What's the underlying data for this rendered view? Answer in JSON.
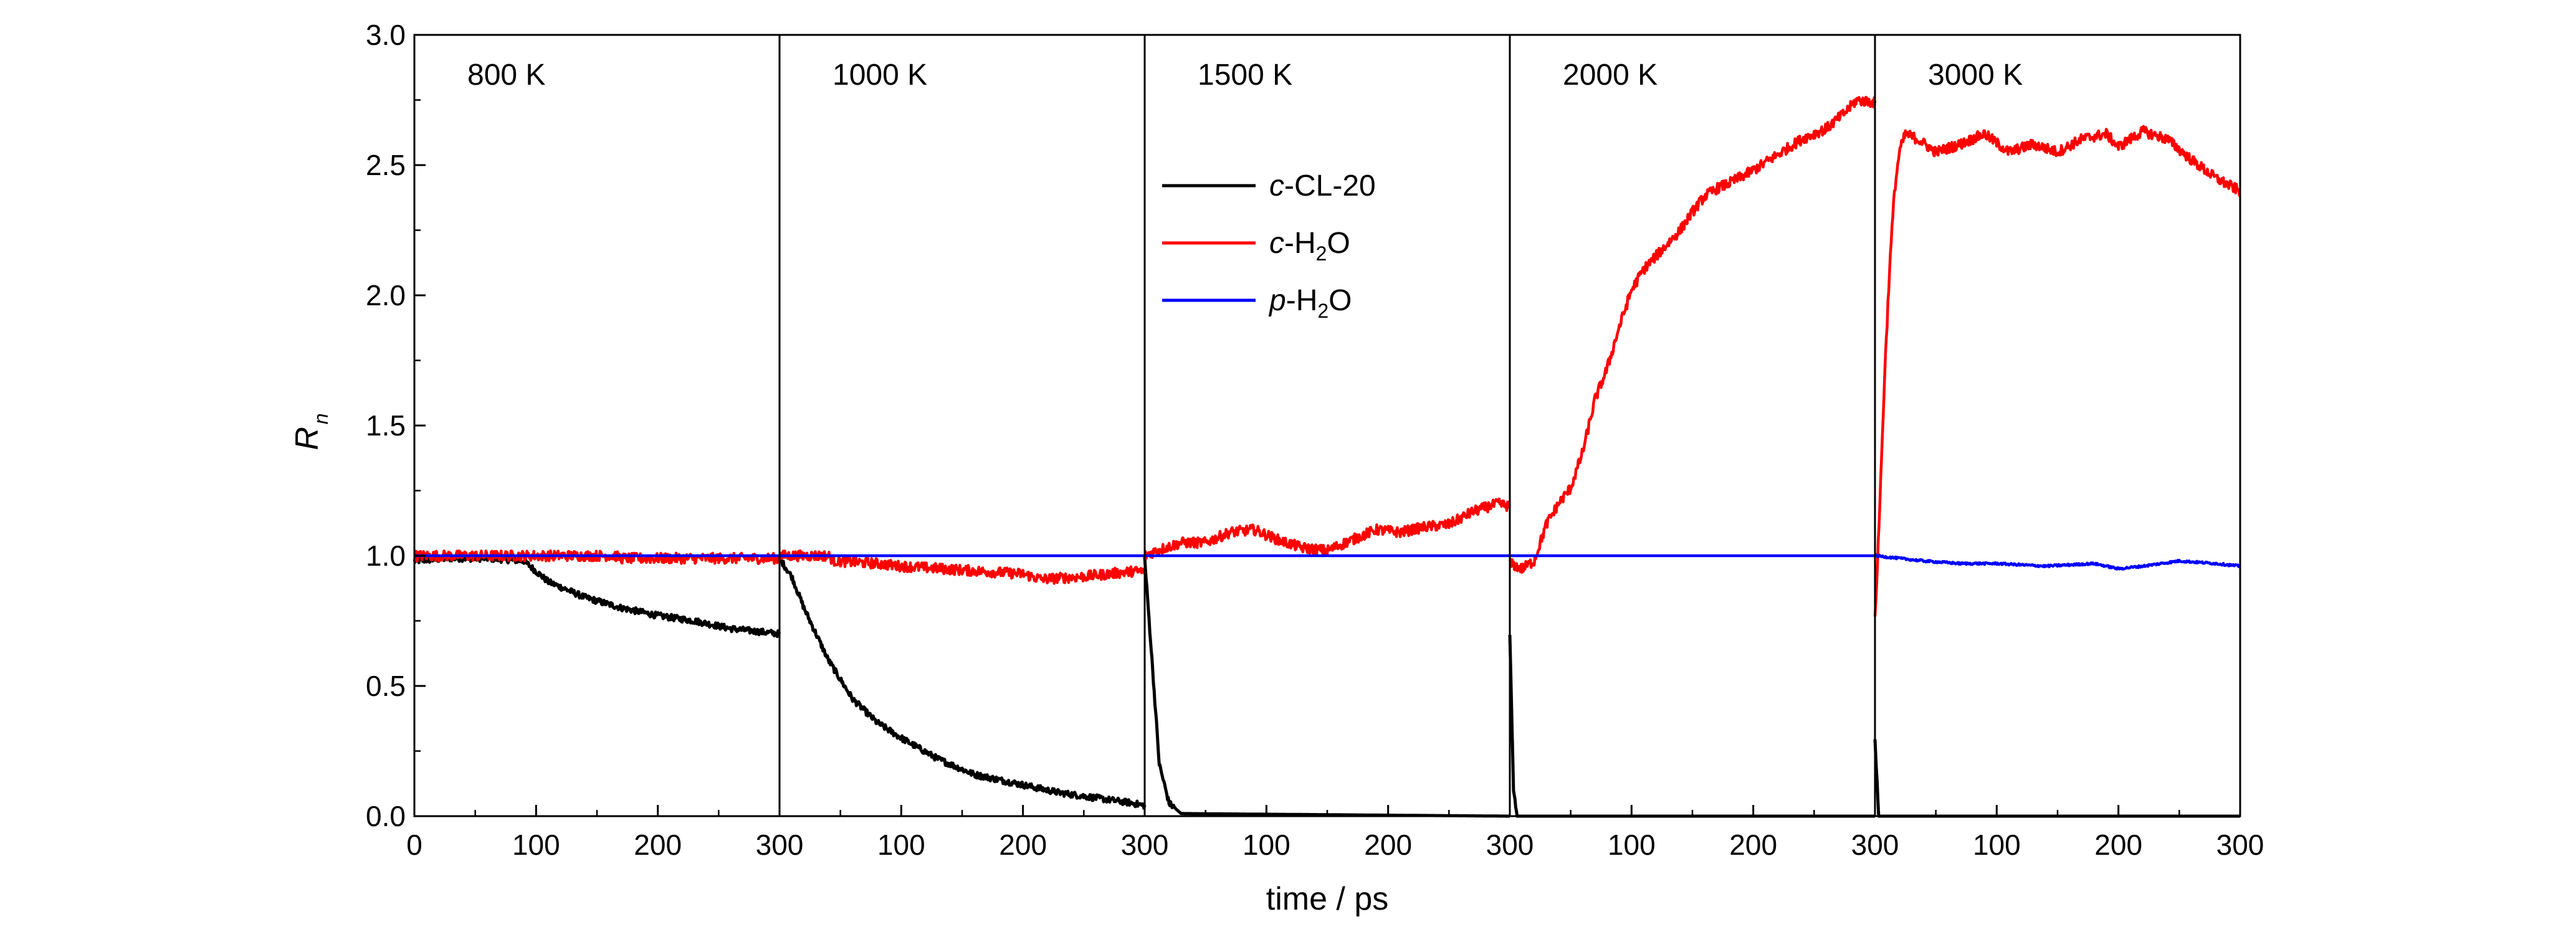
{
  "chart_data": {
    "type": "line",
    "xlabel": "time / ps",
    "ylabel": {
      "main": "R",
      "sub": "n"
    },
    "ylim": [
      0,
      3.0
    ],
    "yticks": [
      "0.0",
      "0.5",
      "1.0",
      "1.5",
      "2.0",
      "2.5",
      "3.0"
    ],
    "grid": false,
    "legend_position": "upper-center",
    "panels": [
      {
        "label": "800 K",
        "xlim": [
          0,
          300
        ],
        "xticks": [
          "0",
          "100",
          "200",
          "300"
        ]
      },
      {
        "label": "1000 K",
        "xlim": [
          0,
          300
        ],
        "xticks": [
          "100",
          "200",
          "300"
        ]
      },
      {
        "label": "1500 K",
        "xlim": [
          0,
          300
        ],
        "xticks": [
          "100",
          "200",
          "300"
        ]
      },
      {
        "label": "2000 K",
        "xlim": [
          0,
          300
        ],
        "xticks": [
          "100",
          "200",
          "300"
        ]
      },
      {
        "label": "3000 K",
        "xlim": [
          0,
          300
        ],
        "xticks": [
          "100",
          "200",
          "300"
        ]
      }
    ],
    "series": [
      {
        "name": "c-CL-20",
        "legend": {
          "italic": "c",
          "rest": "-CL-20",
          "sub": "",
          "after": ""
        },
        "color": "#000000",
        "panels": [
          [
            [
              0,
              0.98
            ],
            [
              30,
              0.99
            ],
            [
              60,
              0.99
            ],
            [
              90,
              0.98
            ],
            [
              110,
              0.9
            ],
            [
              140,
              0.84
            ],
            [
              170,
              0.8
            ],
            [
              200,
              0.77
            ],
            [
              230,
              0.75
            ],
            [
              260,
              0.72
            ],
            [
              300,
              0.7
            ]
          ],
          [
            [
              0,
              0.99
            ],
            [
              10,
              0.92
            ],
            [
              20,
              0.8
            ],
            [
              40,
              0.6
            ],
            [
              60,
              0.45
            ],
            [
              80,
              0.36
            ],
            [
              100,
              0.3
            ],
            [
              130,
              0.22
            ],
            [
              160,
              0.16
            ],
            [
              200,
              0.12
            ],
            [
              230,
              0.09
            ],
            [
              260,
              0.07
            ],
            [
              290,
              0.05
            ],
            [
              300,
              0.04
            ]
          ],
          [
            [
              0,
              0.99
            ],
            [
              6,
              0.6
            ],
            [
              12,
              0.2
            ],
            [
              20,
              0.05
            ],
            [
              30,
              0.01
            ],
            [
              300,
              0.0
            ]
          ],
          [
            [
              0,
              0.7
            ],
            [
              3,
              0.1
            ],
            [
              6,
              0.0
            ],
            [
              300,
              0.0
            ]
          ],
          [
            [
              0,
              0.3
            ],
            [
              3,
              0.0
            ],
            [
              300,
              0.0
            ]
          ]
        ]
      },
      {
        "name": "c-H2O",
        "legend": {
          "italic": "c",
          "rest": "-H",
          "sub": "2",
          "after": "O"
        },
        "color": "#ff0000",
        "panels": [
          [
            [
              0,
              1.0
            ],
            [
              100,
              1.0
            ],
            [
              165,
              1.0
            ],
            [
              170,
              0.99
            ],
            [
              300,
              0.99
            ]
          ],
          [
            [
              0,
              1.0
            ],
            [
              40,
              1.0
            ],
            [
              45,
              0.98
            ],
            [
              80,
              0.97
            ],
            [
              100,
              0.96
            ],
            [
              200,
              0.93
            ],
            [
              215,
              0.91
            ],
            [
              250,
              0.92
            ],
            [
              290,
              0.94
            ],
            [
              300,
              0.94
            ]
          ],
          [
            [
              0,
              1.0
            ],
            [
              10,
              1.02
            ],
            [
              30,
              1.05
            ],
            [
              50,
              1.05
            ],
            [
              70,
              1.09
            ],
            [
              90,
              1.1
            ],
            [
              110,
              1.06
            ],
            [
              130,
              1.03
            ],
            [
              150,
              1.02
            ],
            [
              170,
              1.06
            ],
            [
              190,
              1.1
            ],
            [
              210,
              1.09
            ],
            [
              230,
              1.11
            ],
            [
              250,
              1.12
            ],
            [
              270,
              1.17
            ],
            [
              290,
              1.2
            ],
            [
              300,
              1.19
            ]
          ],
          [
            [
              0,
              0.97
            ],
            [
              10,
              0.95
            ],
            [
              20,
              0.98
            ],
            [
              30,
              1.12
            ],
            [
              40,
              1.2
            ],
            [
              50,
              1.26
            ],
            [
              60,
              1.4
            ],
            [
              70,
              1.6
            ],
            [
              80,
              1.72
            ],
            [
              90,
              1.88
            ],
            [
              100,
              2.02
            ],
            [
              110,
              2.1
            ],
            [
              120,
              2.15
            ],
            [
              130,
              2.2
            ],
            [
              140,
              2.25
            ],
            [
              150,
              2.32
            ],
            [
              160,
              2.38
            ],
            [
              170,
              2.41
            ],
            [
              180,
              2.43
            ],
            [
              200,
              2.48
            ],
            [
              220,
              2.54
            ],
            [
              240,
              2.6
            ],
            [
              260,
              2.64
            ],
            [
              275,
              2.7
            ],
            [
              285,
              2.75
            ],
            [
              300,
              2.74
            ]
          ],
          [
            [
              0,
              0.75
            ],
            [
              4,
              1.2
            ],
            [
              8,
              1.7
            ],
            [
              12,
              2.1
            ],
            [
              16,
              2.4
            ],
            [
              20,
              2.55
            ],
            [
              25,
              2.62
            ],
            [
              35,
              2.6
            ],
            [
              50,
              2.55
            ],
            [
              70,
              2.58
            ],
            [
              90,
              2.62
            ],
            [
              110,
              2.55
            ],
            [
              130,
              2.58
            ],
            [
              150,
              2.55
            ],
            [
              170,
              2.6
            ],
            [
              190,
              2.62
            ],
            [
              200,
              2.57
            ],
            [
              220,
              2.63
            ],
            [
              240,
              2.6
            ],
            [
              260,
              2.52
            ],
            [
              280,
              2.45
            ],
            [
              300,
              2.4
            ]
          ]
        ]
      },
      {
        "name": "p-H2O",
        "legend": {
          "italic": "p",
          "rest": "-H",
          "sub": "2",
          "after": "O"
        },
        "color": "#0000ff",
        "panels": [
          [
            [
              0,
              1.0
            ],
            [
              300,
              1.0
            ]
          ],
          [
            [
              0,
              1.0
            ],
            [
              300,
              1.0
            ]
          ],
          [
            [
              0,
              1.0
            ],
            [
              300,
              1.0
            ]
          ],
          [
            [
              0,
              1.0
            ],
            [
              300,
              1.0
            ]
          ],
          [
            [
              0,
              1.0
            ],
            [
              20,
              0.99
            ],
            [
              40,
              0.98
            ],
            [
              70,
              0.97
            ],
            [
              100,
              0.97
            ],
            [
              140,
              0.96
            ],
            [
              180,
              0.97
            ],
            [
              200,
              0.95
            ],
            [
              220,
              0.96
            ],
            [
              250,
              0.98
            ],
            [
              280,
              0.97
            ],
            [
              300,
              0.96
            ]
          ]
        ]
      }
    ]
  }
}
